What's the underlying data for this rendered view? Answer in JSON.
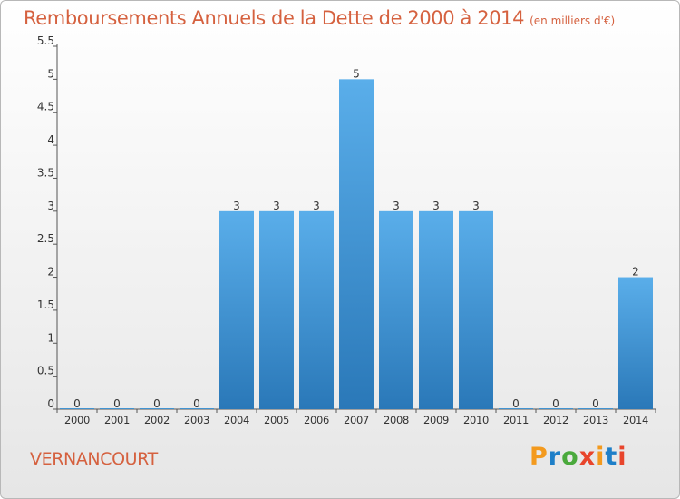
{
  "header": {
    "title": "Remboursements Annuels de la Dette de 2000 à 2014",
    "subtitle": "(en milliers d'€)"
  },
  "footer": {
    "commune": "VERNANCOURT",
    "logo_text": "Proxiti",
    "logo_colors": [
      "#f39a1e",
      "#1e7fc8",
      "#4aa93c",
      "#e8452c",
      "#f39a1e",
      "#1e7fc8",
      "#e8452c"
    ]
  },
  "colors": {
    "title": "#d5613f",
    "bar_top": "#5aaeea",
    "bar_bottom": "#2a78b8",
    "axis": "#555555",
    "tick_label": "#333333"
  },
  "chart_data": {
    "type": "bar",
    "categories": [
      "2000",
      "2001",
      "2002",
      "2003",
      "2004",
      "2005",
      "2006",
      "2007",
      "2008",
      "2009",
      "2010",
      "2011",
      "2012",
      "2013",
      "2014"
    ],
    "values": [
      0,
      0,
      0,
      0,
      3,
      3,
      3,
      5,
      3,
      3,
      3,
      0,
      0,
      0,
      2
    ],
    "data_labels": [
      "0",
      "0",
      "0",
      "0",
      "3",
      "3",
      "3",
      "5",
      "3",
      "3",
      "3",
      "0",
      "0",
      "0",
      "2"
    ],
    "ylim": [
      0,
      5.5
    ],
    "yticks": [
      0,
      0.5,
      1,
      1.5,
      2,
      2.5,
      3,
      3.5,
      4,
      4.5,
      5,
      5.5
    ],
    "ytick_labels": [
      "0",
      "0.5",
      "1",
      "1.5",
      "2",
      "2.5",
      "3",
      "3.5",
      "4",
      "4.5",
      "5",
      "5.5"
    ],
    "grid": false,
    "legend": "none"
  }
}
